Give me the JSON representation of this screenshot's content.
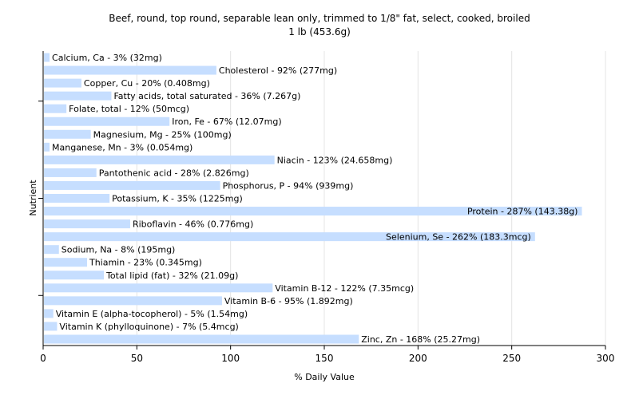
{
  "chart_data": {
    "type": "bar",
    "orientation": "horizontal",
    "title": "Beef, round, top round, separable lean only, trimmed to 1/8\" fat, select, cooked, broiled",
    "subtitle": "1 lb (453.6g)",
    "xlabel": "% Daily Value",
    "ylabel": "Nutrient",
    "xlim": [
      0,
      300
    ],
    "xticks": [
      "0",
      "50",
      "100",
      "150",
      "200",
      "250",
      "300"
    ],
    "grid": true,
    "bar_color": "#c6deff",
    "categories": [
      "Calcium, Ca",
      "Cholesterol",
      "Copper, Cu",
      "Fatty acids, total saturated",
      "Folate, total",
      "Iron, Fe",
      "Magnesium, Mg",
      "Manganese, Mn",
      "Niacin",
      "Pantothenic acid",
      "Phosphorus, P",
      "Potassium, K",
      "Protein",
      "Riboflavin",
      "Selenium, Se",
      "Sodium, Na",
      "Thiamin",
      "Total lipid (fat)",
      "Vitamin B-12",
      "Vitamin B-6",
      "Vitamin E (alpha-tocopherol)",
      "Vitamin K (phylloquinone)",
      "Zinc, Zn"
    ],
    "values": [
      3,
      92,
      20,
      36,
      12,
      67,
      25,
      3,
      123,
      28,
      94,
      35,
      287,
      46,
      262,
      8,
      23,
      32,
      122,
      95,
      5,
      7,
      168
    ],
    "labels": [
      "Calcium, Ca - 3% (32mg)",
      "Cholesterol - 92% (277mg)",
      "Copper, Cu - 20% (0.408mg)",
      "Fatty acids, total saturated - 36% (7.267g)",
      "Folate, total - 12% (50mcg)",
      "Iron, Fe - 67% (12.07mg)",
      "Magnesium, Mg - 25% (100mg)",
      "Manganese, Mn - 3% (0.054mg)",
      "Niacin - 123% (24.658mg)",
      "Pantothenic acid - 28% (2.826mg)",
      "Phosphorus, P - 94% (939mg)",
      "Potassium, K - 35% (1225mg)",
      "Protein - 287% (143.38g)",
      "Riboflavin - 46% (0.776mg)",
      "Selenium, Se - 262% (183.3mcg)",
      "Sodium, Na - 8% (195mg)",
      "Thiamin - 23% (0.345mg)",
      "Total lipid (fat) - 32% (21.09g)",
      "Vitamin B-12 - 122% (7.35mcg)",
      "Vitamin B-6 - 95% (1.892mg)",
      "Vitamin E (alpha-tocopherol) - 5% (1.54mg)",
      "Vitamin K (phylloquinone) - 7% (5.4mcg)",
      "Zinc, Zn - 168% (25.27mg)"
    ]
  }
}
